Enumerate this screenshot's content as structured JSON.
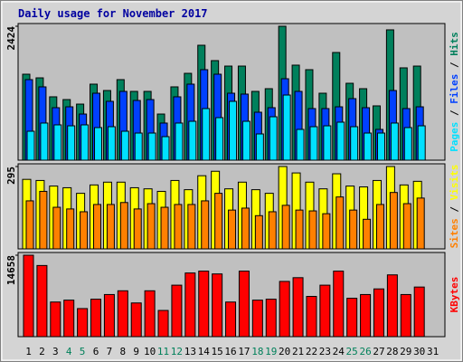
{
  "title": "Daily usage for November 2017",
  "legend_separator": " / ",
  "weekend_color": "#00805a",
  "weekends": [
    3,
    4,
    10,
    11,
    17,
    18,
    24,
    25
  ],
  "chart_data": [
    {
      "type": "bar",
      "ylim": [
        0,
        2424
      ],
      "yticks": [
        2424
      ],
      "series": [
        {
          "name": "Hits",
          "color": "#00805c",
          "values": [
            1556,
            1490,
            1147,
            1097,
            1015,
            1376,
            1261,
            1458,
            1245,
            1245,
            835,
            1327,
            1572,
            2080,
            1802,
            1703,
            1703,
            1245,
            1294,
            2424,
            1720,
            1638,
            1212,
            1949,
            1392,
            1294,
            983,
            2359,
            1671,
            1703,
            null
          ]
        },
        {
          "name": "Files",
          "color": "#0040ff",
          "values": [
            1458,
            1327,
            950,
            966,
            835,
            1212,
            1065,
            1245,
            1081,
            1097,
            672,
            1147,
            1376,
            1638,
            1556,
            1212,
            1196,
            868,
            950,
            1474,
            1245,
            934,
            934,
            966,
            1114,
            950,
            557,
            1261,
            934,
            966,
            null
          ]
        },
        {
          "name": "Pages",
          "color": "#00e0ff",
          "values": [
            524,
            672,
            639,
            622,
            639,
            590,
            606,
            524,
            491,
            491,
            426,
            672,
            704,
            934,
            770,
            1065,
            704,
            475,
            786,
            1179,
            557,
            606,
            622,
            688,
            606,
            491,
            491,
            672,
            590,
            622,
            null
          ]
        }
      ]
    },
    {
      "type": "bar",
      "ylim": [
        0,
        295
      ],
      "yticks": [
        295
      ],
      "series": [
        {
          "name": "Visits",
          "color": "#ffff00",
          "values": [
            249,
            245,
            225,
            219,
            199,
            229,
            239,
            239,
            219,
            215,
            206,
            245,
            212,
            262,
            278,
            215,
            239,
            212,
            199,
            295,
            272,
            239,
            215,
            269,
            225,
            222,
            245,
            295,
            229,
            242,
            null
          ]
        },
        {
          "name": "Sites",
          "color": "#ff8000",
          "values": [
            172,
            206,
            149,
            143,
            133,
            159,
            159,
            166,
            143,
            162,
            149,
            159,
            159,
            172,
            199,
            139,
            146,
            119,
            133,
            156,
            139,
            136,
            126,
            186,
            139,
            106,
            159,
            202,
            162,
            182,
            null
          ]
        }
      ]
    },
    {
      "type": "bar",
      "ylim": [
        0,
        14658
      ],
      "yticks": [
        14658
      ],
      "categories": [
        "1",
        "2",
        "3",
        "4",
        "5",
        "6",
        "7",
        "8",
        "9",
        "10",
        "11",
        "12",
        "13",
        "14",
        "15",
        "16",
        "17",
        "18",
        "19",
        "20",
        "21",
        "22",
        "23",
        "24",
        "25",
        "26",
        "27",
        "28",
        "29",
        "30",
        "31"
      ],
      "series": [
        {
          "name": "KBytes",
          "color": "#ff0000",
          "values": [
            14658,
            12806,
            6235,
            6572,
            5055,
            6740,
            7583,
            8257,
            6066,
            8257,
            4718,
            9268,
            11458,
            11795,
            11290,
            6235,
            11795,
            6572,
            6740,
            9942,
            10616,
            7246,
            9268,
            11795,
            6909,
            7583,
            8594,
            11121,
            7583,
            8931,
            null
          ]
        }
      ]
    }
  ]
}
